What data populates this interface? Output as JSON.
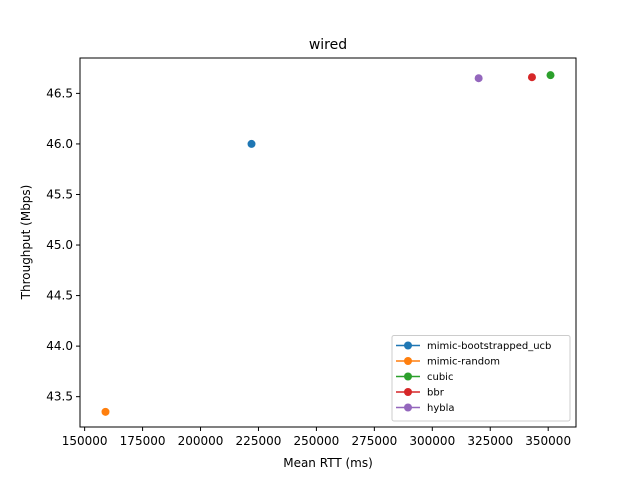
{
  "chart_data": {
    "type": "scatter",
    "title": "wired",
    "xlabel": "Mean RTT (ms)",
    "ylabel": "Throughput (Mbps)",
    "xlim": [
      148000,
      362000
    ],
    "ylim": [
      43.2,
      46.85
    ],
    "xticks": [
      150000,
      175000,
      200000,
      225000,
      250000,
      275000,
      300000,
      325000,
      350000
    ],
    "yticks": [
      43.5,
      44.0,
      44.5,
      45.0,
      45.5,
      46.0,
      46.5
    ],
    "xtick_labels": [
      "150000",
      "175000",
      "200000",
      "225000",
      "250000",
      "275000",
      "300000",
      "325000",
      "350000"
    ],
    "ytick_labels": [
      "43.5",
      "44.0",
      "44.5",
      "45.0",
      "45.5",
      "46.0",
      "46.5"
    ],
    "grid": false,
    "legend_position": "lower-right",
    "series": [
      {
        "name": "mimic-bootstrapped_ucb",
        "color": "#1f77b4",
        "x": [
          222000
        ],
        "y": [
          46.0
        ]
      },
      {
        "name": "mimic-random",
        "color": "#ff7f0e",
        "x": [
          159000
        ],
        "y": [
          43.35
        ]
      },
      {
        "name": "cubic",
        "color": "#2ca02c",
        "x": [
          351000
        ],
        "y": [
          46.68
        ]
      },
      {
        "name": "bbr",
        "color": "#d62728",
        "x": [
          343000
        ],
        "y": [
          46.66
        ]
      },
      {
        "name": "hybla",
        "color": "#9467bd",
        "x": [
          320000
        ],
        "y": [
          46.65
        ]
      }
    ]
  }
}
